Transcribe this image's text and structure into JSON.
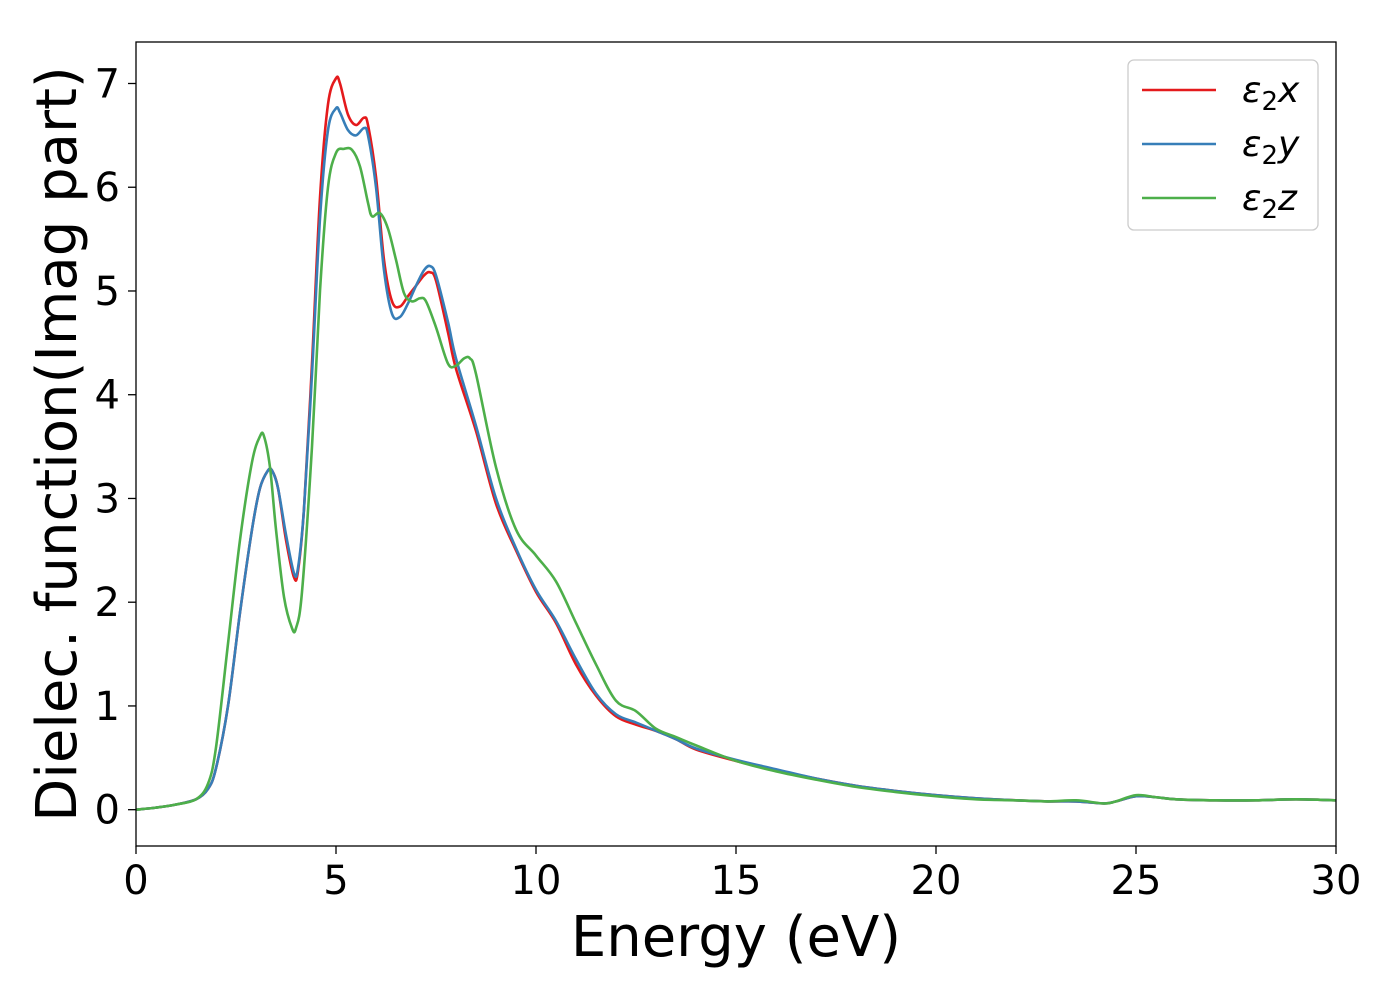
{
  "chart_data": {
    "type": "line",
    "title": "",
    "xlabel": "Energy (eV)",
    "ylabel": "Dielec. function(Imag part)",
    "xlim": [
      0,
      30
    ],
    "ylim": [
      -0.35,
      7.4
    ],
    "xticks": [
      0,
      5,
      10,
      15,
      20,
      25,
      30
    ],
    "yticks": [
      0,
      1,
      2,
      3,
      4,
      5,
      6,
      7
    ],
    "grid": false,
    "legend_position": "top-right",
    "series": [
      {
        "name": "ε₂x",
        "legend_base": "ε",
        "legend_sub": "2",
        "legend_axis": "x",
        "color": "#e41a1c",
        "x": [
          0,
          0.5,
          1.0,
          1.5,
          1.8,
          2.0,
          2.3,
          2.6,
          2.9,
          3.1,
          3.3,
          3.4,
          3.55,
          3.75,
          3.95,
          4.05,
          4.2,
          4.4,
          4.6,
          4.8,
          5.0,
          5.1,
          5.3,
          5.5,
          5.7,
          5.8,
          6.0,
          6.2,
          6.4,
          6.6,
          6.8,
          7.0,
          7.2,
          7.35,
          7.5,
          7.8,
          8.0,
          8.5,
          9.0,
          9.5,
          10.0,
          10.5,
          11.0,
          11.5,
          12.0,
          12.5,
          13.0,
          13.5,
          14.0,
          15.0,
          16.0,
          17.0,
          18.0,
          19.0,
          20.0,
          21.0,
          22.0,
          22.8,
          23.5,
          24.2,
          24.5,
          25.0,
          25.5,
          26.0,
          27.0,
          28.0,
          29.0,
          30.0
        ],
        "y": [
          0.0,
          0.02,
          0.05,
          0.1,
          0.2,
          0.4,
          1.0,
          1.9,
          2.7,
          3.1,
          3.27,
          3.27,
          3.1,
          2.6,
          2.24,
          2.3,
          2.9,
          4.3,
          5.9,
          6.8,
          7.05,
          7.0,
          6.7,
          6.6,
          6.67,
          6.6,
          6.1,
          5.3,
          4.9,
          4.85,
          4.95,
          5.05,
          5.15,
          5.18,
          5.1,
          4.6,
          4.25,
          3.65,
          2.95,
          2.5,
          2.1,
          1.8,
          1.4,
          1.1,
          0.9,
          0.82,
          0.76,
          0.68,
          0.58,
          0.47,
          0.38,
          0.3,
          0.23,
          0.18,
          0.14,
          0.11,
          0.09,
          0.08,
          0.08,
          0.06,
          0.08,
          0.13,
          0.12,
          0.1,
          0.09,
          0.09,
          0.1,
          0.09
        ]
      },
      {
        "name": "ε₂y",
        "legend_base": "ε",
        "legend_sub": "2",
        "legend_axis": "y",
        "color": "#377eb8",
        "x": [
          0,
          0.5,
          1.0,
          1.5,
          1.8,
          2.0,
          2.3,
          2.6,
          2.9,
          3.1,
          3.3,
          3.4,
          3.55,
          3.75,
          3.95,
          4.05,
          4.2,
          4.4,
          4.6,
          4.8,
          5.0,
          5.1,
          5.3,
          5.5,
          5.7,
          5.8,
          6.0,
          6.2,
          6.4,
          6.6,
          6.8,
          7.0,
          7.2,
          7.35,
          7.5,
          7.8,
          8.0,
          8.5,
          9.0,
          9.5,
          10.0,
          10.5,
          11.0,
          11.5,
          12.0,
          12.5,
          13.0,
          13.5,
          14.0,
          15.0,
          16.0,
          17.0,
          18.0,
          19.0,
          20.0,
          21.0,
          22.0,
          22.8,
          23.5,
          24.2,
          24.5,
          25.0,
          25.5,
          26.0,
          27.0,
          28.0,
          29.0,
          30.0
        ],
        "y": [
          0.0,
          0.02,
          0.05,
          0.1,
          0.2,
          0.4,
          1.0,
          1.9,
          2.7,
          3.1,
          3.27,
          3.27,
          3.1,
          2.65,
          2.28,
          2.33,
          2.9,
          4.2,
          5.7,
          6.55,
          6.76,
          6.72,
          6.55,
          6.5,
          6.57,
          6.5,
          6.0,
          5.2,
          4.78,
          4.75,
          4.88,
          5.05,
          5.2,
          5.24,
          5.15,
          4.7,
          4.35,
          3.7,
          3.0,
          2.52,
          2.12,
          1.82,
          1.45,
          1.12,
          0.92,
          0.84,
          0.76,
          0.68,
          0.59,
          0.48,
          0.39,
          0.3,
          0.23,
          0.18,
          0.14,
          0.11,
          0.09,
          0.08,
          0.08,
          0.06,
          0.08,
          0.13,
          0.12,
          0.1,
          0.09,
          0.09,
          0.1,
          0.09
        ]
      },
      {
        "name": "ε₂z",
        "legend_base": "ε",
        "legend_sub": "2",
        "legend_axis": "z",
        "color": "#4daf4a",
        "x": [
          0,
          0.5,
          1.0,
          1.5,
          1.8,
          2.0,
          2.3,
          2.6,
          2.9,
          3.1,
          3.2,
          3.35,
          3.5,
          3.7,
          3.9,
          4.0,
          4.15,
          4.4,
          4.6,
          4.8,
          5.0,
          5.2,
          5.4,
          5.6,
          5.8,
          5.9,
          6.1,
          6.3,
          6.5,
          6.7,
          6.9,
          7.1,
          7.25,
          7.5,
          7.8,
          8.0,
          8.2,
          8.35,
          8.5,
          9.0,
          9.5,
          10.0,
          10.5,
          11.0,
          11.5,
          12.0,
          12.5,
          13.0,
          13.5,
          14.0,
          15.0,
          16.0,
          17.0,
          18.0,
          19.0,
          20.0,
          21.0,
          22.0,
          22.8,
          23.5,
          24.2,
          24.5,
          25.0,
          25.5,
          26.0,
          27.0,
          28.0,
          29.0,
          30.0
        ],
        "y": [
          0.0,
          0.02,
          0.05,
          0.1,
          0.25,
          0.6,
          1.6,
          2.6,
          3.35,
          3.6,
          3.6,
          3.3,
          2.7,
          2.05,
          1.75,
          1.75,
          2.1,
          3.5,
          5.0,
          6.0,
          6.33,
          6.37,
          6.36,
          6.2,
          5.85,
          5.72,
          5.75,
          5.6,
          5.3,
          4.98,
          4.9,
          4.93,
          4.9,
          4.65,
          4.3,
          4.28,
          4.35,
          4.35,
          4.2,
          3.3,
          2.7,
          2.45,
          2.2,
          1.8,
          1.4,
          1.05,
          0.95,
          0.78,
          0.7,
          0.62,
          0.47,
          0.37,
          0.29,
          0.22,
          0.17,
          0.13,
          0.1,
          0.09,
          0.08,
          0.09,
          0.06,
          0.08,
          0.14,
          0.12,
          0.1,
          0.09,
          0.09,
          0.1,
          0.09
        ]
      }
    ]
  }
}
